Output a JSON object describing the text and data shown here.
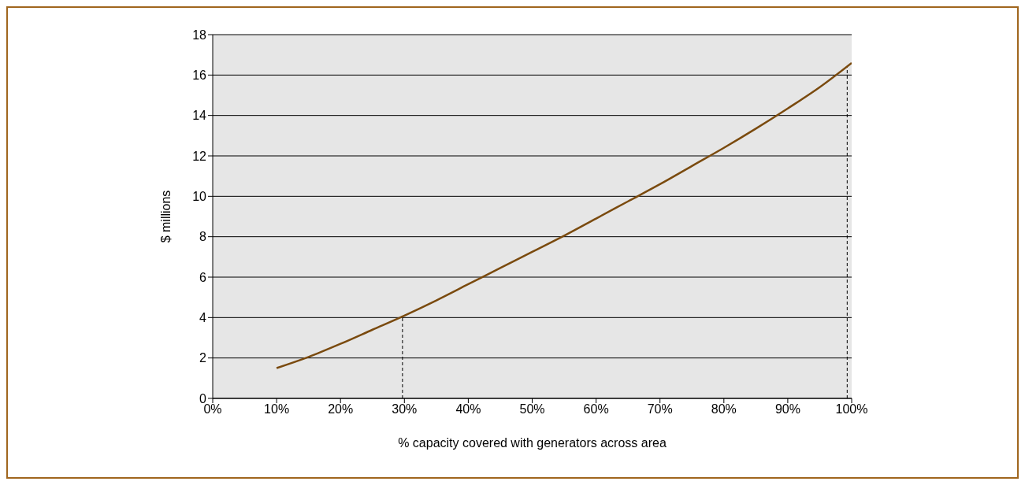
{
  "chart_data": {
    "type": "line",
    "xlabel": "% capacity covered with generators across area",
    "ylabel": "$ millions",
    "x": [
      10,
      15,
      20,
      25,
      30,
      35,
      40,
      45,
      50,
      55,
      60,
      65,
      70,
      75,
      80,
      85,
      90,
      95,
      100
    ],
    "series": [
      {
        "color": "#7a4a0e",
        "values": [
          1.5,
          2.05,
          2.7,
          3.4,
          4.1,
          4.85,
          5.65,
          6.45,
          7.25,
          8.05,
          8.9,
          9.75,
          10.6,
          11.5,
          12.4,
          13.35,
          14.35,
          15.4,
          16.6
        ]
      }
    ],
    "xlim": [
      0,
      100
    ],
    "xticks": [
      {
        "value": 0,
        "label": "0%"
      },
      {
        "value": 10,
        "label": "10%"
      },
      {
        "value": 20,
        "label": "20%"
      },
      {
        "value": 30,
        "label": "30%"
      },
      {
        "value": 40,
        "label": "40%"
      },
      {
        "value": 50,
        "label": "50%"
      },
      {
        "value": 60,
        "label": "60%"
      },
      {
        "value": 70,
        "label": "70%"
      },
      {
        "value": 80,
        "label": "80%"
      },
      {
        "value": 90,
        "label": "90%"
      },
      {
        "value": 100,
        "label": "100%"
      }
    ],
    "ylim": [
      0,
      18
    ],
    "yticks": [
      0,
      2,
      4,
      6,
      8,
      10,
      12,
      14,
      16,
      18
    ],
    "grid": "y",
    "marker": "none",
    "line_style": "solid",
    "ref_lines": [
      {
        "axis": "x",
        "value": 29.7,
        "color": "#000000",
        "line_style": "dashed"
      },
      {
        "axis": "x",
        "value": 99.3,
        "color": "#000000",
        "line_style": "dashed"
      }
    ]
  }
}
